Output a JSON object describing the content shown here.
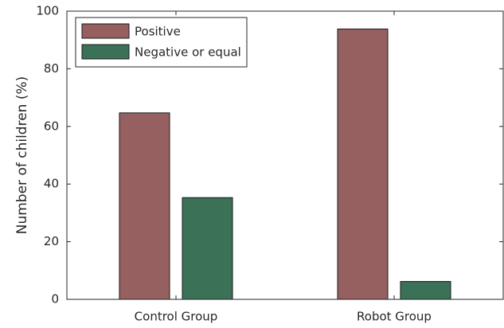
{
  "chart_data": {
    "type": "bar",
    "y_label": "Number of children (%)",
    "categories": [
      "Control Group",
      "Robot Group"
    ],
    "series": [
      {
        "name": "Positive",
        "color": "#966060",
        "values": [
          64.7,
          93.8
        ]
      },
      {
        "name": "Negative or equal",
        "color": "#3b7156",
        "values": [
          35.3,
          6.2
        ]
      }
    ],
    "ylim": [
      0,
      100
    ],
    "yticks": [
      0,
      20,
      40,
      60,
      80,
      100
    ],
    "legend": "top-left"
  }
}
